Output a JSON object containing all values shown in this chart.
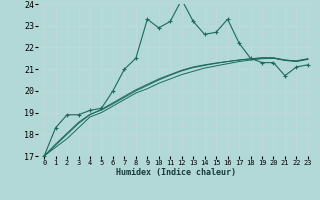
{
  "xlabel": "Humidex (Indice chaleur)",
  "bg_color": "#b2d8d8",
  "grid_color": "#d0e8e8",
  "line_color": "#1a6b5a",
  "xlim": [
    -0.5,
    23.5
  ],
  "ylim": [
    17,
    24
  ],
  "xticks": [
    0,
    1,
    2,
    3,
    4,
    5,
    6,
    7,
    8,
    9,
    10,
    11,
    12,
    13,
    14,
    15,
    16,
    17,
    18,
    19,
    20,
    21,
    22,
    23
  ],
  "yticks": [
    17,
    18,
    19,
    20,
    21,
    22,
    23,
    24
  ],
  "series1_x": [
    0,
    1,
    2,
    3,
    4,
    5,
    6,
    7,
    8,
    9,
    10,
    11,
    12,
    13,
    14,
    15,
    16,
    17,
    18,
    19,
    20,
    21,
    22,
    23
  ],
  "series1_y": [
    17.0,
    18.3,
    18.9,
    18.9,
    19.1,
    19.2,
    20.0,
    21.0,
    21.5,
    23.3,
    22.9,
    23.2,
    24.2,
    23.2,
    22.6,
    22.7,
    23.3,
    22.2,
    21.5,
    21.3,
    21.3,
    20.7,
    21.1,
    21.2
  ],
  "series2_x": [
    0,
    1,
    2,
    3,
    4,
    5,
    6,
    7,
    8,
    9,
    10,
    11,
    12,
    13,
    14,
    15,
    16,
    17,
    18,
    19,
    20,
    21,
    22,
    23
  ],
  "series2_y": [
    17.0,
    17.4,
    17.8,
    18.3,
    18.8,
    19.0,
    19.3,
    19.6,
    19.9,
    20.1,
    20.35,
    20.55,
    20.75,
    20.9,
    21.05,
    21.15,
    21.25,
    21.35,
    21.42,
    21.48,
    21.5,
    21.4,
    21.35,
    21.45
  ],
  "series3_x": [
    0,
    1,
    2,
    3,
    4,
    5,
    6,
    7,
    8,
    9,
    10,
    11,
    12,
    13,
    14,
    15,
    16,
    17,
    18,
    19,
    20,
    21,
    22,
    23
  ],
  "series3_y": [
    17.0,
    17.5,
    18.0,
    18.5,
    18.9,
    19.15,
    19.45,
    19.75,
    20.05,
    20.3,
    20.55,
    20.75,
    20.95,
    21.1,
    21.2,
    21.28,
    21.35,
    21.42,
    21.48,
    21.52,
    21.52,
    21.42,
    21.38,
    21.48
  ],
  "series4_x": [
    0,
    1,
    2,
    3,
    4,
    5,
    6,
    7,
    8,
    9,
    10,
    11,
    12,
    13,
    14,
    15,
    16,
    17,
    18,
    19,
    20,
    21,
    22,
    23
  ],
  "series4_y": [
    17.0,
    17.55,
    18.05,
    18.55,
    18.92,
    19.12,
    19.4,
    19.7,
    20.0,
    20.25,
    20.5,
    20.72,
    20.92,
    21.07,
    21.17,
    21.27,
    21.35,
    21.42,
    21.47,
    21.52,
    21.52,
    21.42,
    21.37,
    21.47
  ]
}
